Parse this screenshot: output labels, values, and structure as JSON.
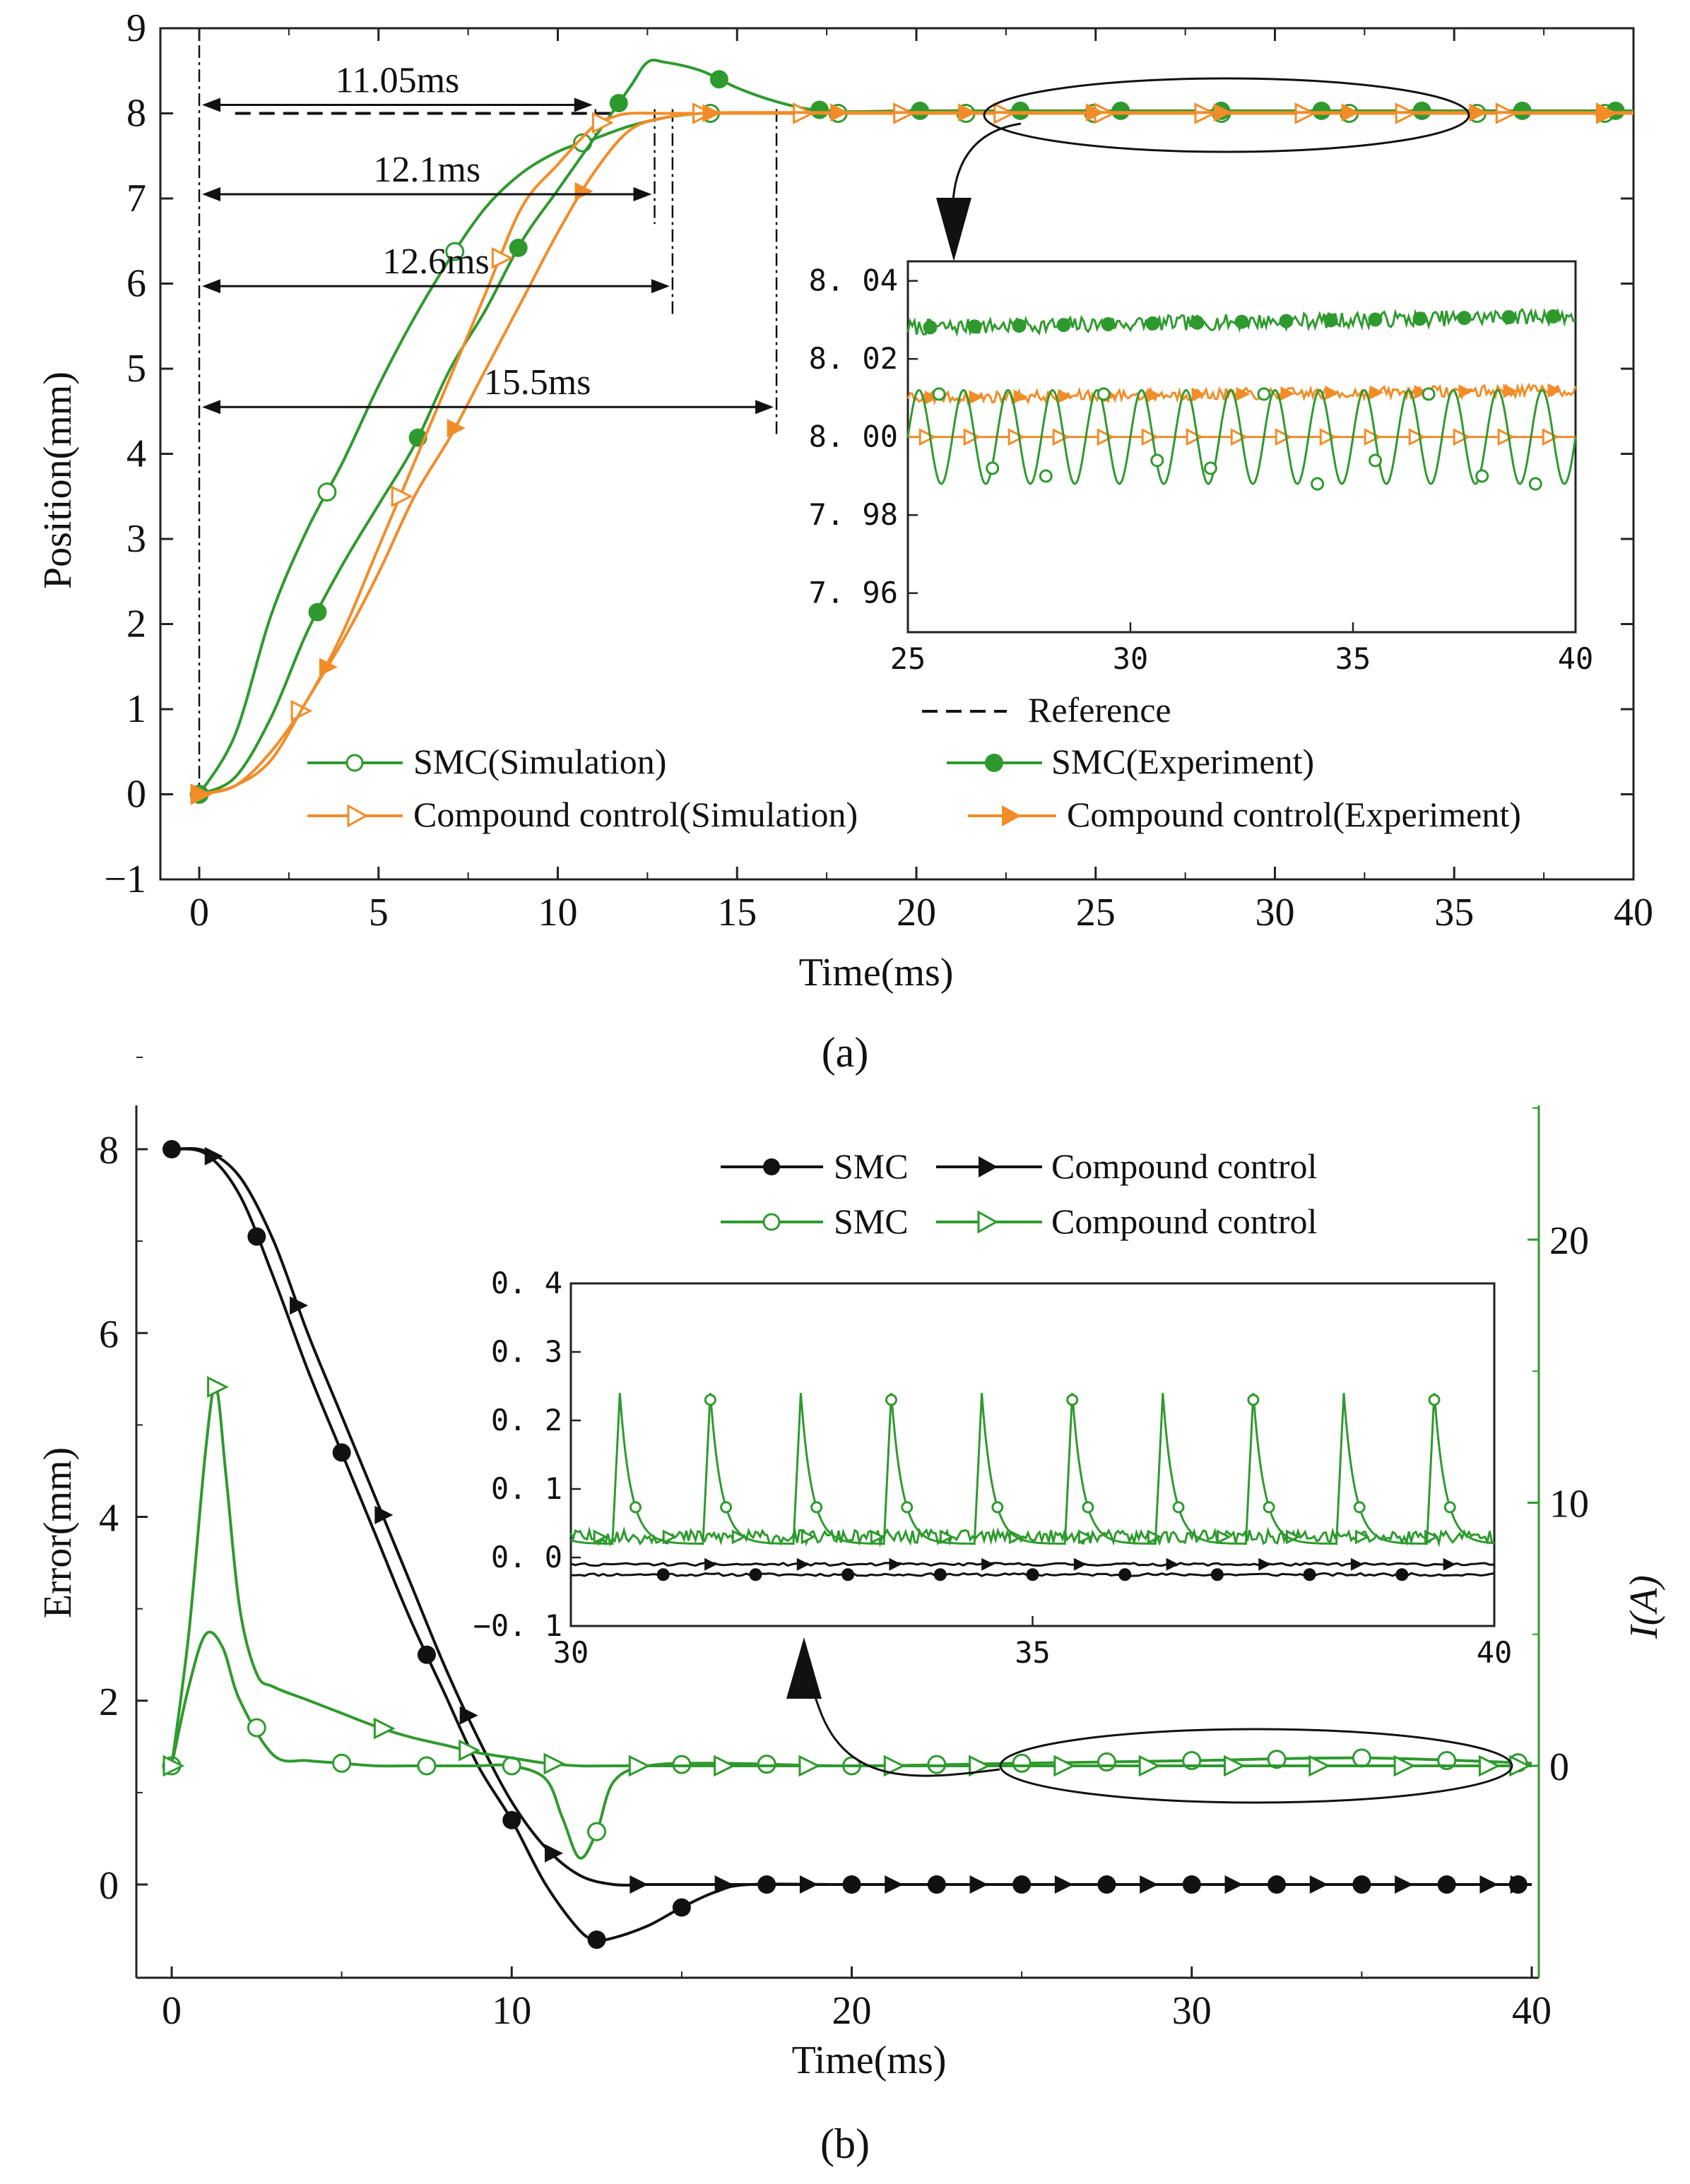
{
  "colors": {
    "smc_green": "#2e9a2e",
    "compound_orange": "#f28c28",
    "black": "#111111",
    "axis": "#222222"
  },
  "panels": [
    {
      "caption": "(a)"
    },
    {
      "caption": "(b)"
    }
  ],
  "chart_data": [
    {
      "type": "line",
      "panel": "a",
      "xlabel": "Time(ms)",
      "ylabel": "Position(mm)",
      "xlim": [
        0,
        40
      ],
      "ylim": [
        -1,
        9
      ],
      "xticks": [
        "0",
        "5",
        "10",
        "15",
        "20",
        "25",
        "30",
        "35",
        "40"
      ],
      "yticks": [
        "−1",
        "0",
        "1",
        "2",
        "3",
        "4",
        "5",
        "6",
        "7",
        "8",
        "9"
      ],
      "reference": {
        "name": "Reference",
        "value": 8
      },
      "annotations": [
        "11.05ms",
        "12.1ms",
        "12.6ms",
        "15.5ms"
      ],
      "annotation_times": [
        11.05,
        12.1,
        12.6,
        15.5
      ],
      "annotation_levels": [
        8.1,
        7.05,
        5.97,
        4.55
      ],
      "series": [
        {
          "name": "SMC(Simulation)",
          "color": "#2e9a2e",
          "marker": "open-circle",
          "x": [
            0,
            1,
            2,
            3,
            4,
            5,
            6,
            7,
            8,
            9,
            10,
            11,
            12,
            13,
            14,
            15,
            17,
            20,
            25,
            30,
            35,
            40
          ],
          "y": [
            0,
            0.7,
            2.1,
            3.1,
            3.9,
            4.8,
            5.6,
            6.3,
            6.9,
            7.3,
            7.55,
            7.7,
            7.85,
            7.95,
            8.0,
            8.0,
            8.0,
            8.0,
            8.0,
            8.0,
            8.0,
            8.0
          ]
        },
        {
          "name": "SMC(Experiment)",
          "color": "#2e9a2e",
          "marker": "filled-circle",
          "x": [
            0,
            1,
            2,
            3,
            4,
            5,
            6,
            7,
            8,
            9,
            10,
            11,
            12,
            12.5,
            13,
            14,
            15,
            16,
            17,
            18,
            20,
            25,
            30,
            35,
            40
          ],
          "y": [
            0,
            0.2,
            0.9,
            1.9,
            2.7,
            3.4,
            4.1,
            5.0,
            5.7,
            6.5,
            7.1,
            7.7,
            8.3,
            8.6,
            8.6,
            8.5,
            8.3,
            8.15,
            8.05,
            8.02,
            8.03,
            8.03,
            8.03,
            8.03,
            8.03
          ]
        },
        {
          "name": "Compound control(Simulation)",
          "color": "#f28c28",
          "marker": "open-triangle",
          "x": [
            0,
            1,
            2,
            3,
            4,
            5,
            6,
            7,
            8,
            9,
            10,
            11,
            11.5,
            12,
            13,
            15,
            20,
            25,
            30,
            35,
            40
          ],
          "y": [
            0,
            0.1,
            0.5,
            1.1,
            1.9,
            2.9,
            3.9,
            4.9,
            5.9,
            6.9,
            7.4,
            7.85,
            7.95,
            8.0,
            8.0,
            8.0,
            8.0,
            8.0,
            8.0,
            8.0,
            8.0
          ]
        },
        {
          "name": "Compound control(Experiment)",
          "color": "#f28c28",
          "marker": "filled-triangle",
          "x": [
            0,
            1,
            2,
            3,
            4,
            5,
            6,
            7,
            8,
            9,
            10,
            11,
            12,
            13,
            14,
            15,
            20,
            25,
            30,
            35,
            40
          ],
          "y": [
            0,
            0.1,
            0.4,
            1.1,
            1.8,
            2.6,
            3.5,
            4.2,
            5.0,
            5.8,
            6.6,
            7.3,
            7.8,
            7.95,
            8.0,
            8.01,
            8.01,
            8.01,
            8.01,
            8.01,
            8.01
          ]
        }
      ],
      "inset": {
        "xlim": [
          25,
          40
        ],
        "ylim": [
          7.95,
          8.045
        ],
        "xticks": [
          "25",
          "30",
          "35",
          "40"
        ],
        "yticks": [
          "8. 04",
          "8. 02",
          "8. 00",
          "7. 98",
          "7. 96"
        ],
        "series": [
          {
            "name": "SMC(Experiment)",
            "level": 8.028,
            "trend": 0.003,
            "noise": 0.002
          },
          {
            "name": "Compound control(Experiment)",
            "level": 8.01,
            "trend": 0.002,
            "noise": 0.0015
          },
          {
            "name": "SMC(Simulation)",
            "level": 8.0,
            "amplitude": 0.012,
            "period_ms": 1.0
          },
          {
            "name": "Compound control(Simulation)",
            "level": 8.0
          }
        ]
      }
    },
    {
      "type": "line",
      "panel": "b",
      "xlabel": "Time(ms)",
      "ylabel": "Error(mm)",
      "y2label": "I(A)",
      "xlim": [
        0,
        40
      ],
      "ylim": [
        -1,
        8.5
      ],
      "y2lim": [
        -16,
        30
      ],
      "xticks": [
        "0",
        "10",
        "20",
        "30",
        "40"
      ],
      "yticks": [
        "0",
        "2",
        "4",
        "6",
        "8"
      ],
      "y2ticks": [
        "0",
        "10",
        "20"
      ],
      "series": [
        {
          "name": "SMC",
          "axis": "left",
          "color": "#111111",
          "marker": "filled-circle",
          "x": [
            0,
            1,
            2,
            3,
            4,
            5,
            6,
            7,
            8,
            9,
            10,
            11,
            12,
            12.5,
            13,
            14,
            15,
            16,
            17,
            20,
            25,
            30,
            35,
            40
          ],
          "y": [
            8,
            7.95,
            7.5,
            6.6,
            5.6,
            4.7,
            3.8,
            2.9,
            2.1,
            1.3,
            0.7,
            0.0,
            -0.5,
            -0.6,
            -0.58,
            -0.45,
            -0.25,
            -0.08,
            0,
            0,
            0,
            0,
            0,
            0
          ]
        },
        {
          "name": "Compound control",
          "axis": "left",
          "color": "#111111",
          "marker": "filled-triangle",
          "x": [
            0,
            1,
            2,
            3,
            4,
            5,
            6,
            7,
            8,
            9,
            10,
            11,
            12,
            13,
            14,
            15,
            20,
            25,
            30,
            35,
            40
          ],
          "y": [
            8,
            7.98,
            7.7,
            7.0,
            6.0,
            5.1,
            4.2,
            3.3,
            2.4,
            1.6,
            0.9,
            0.4,
            0.1,
            0.0,
            0,
            0,
            0,
            0,
            0,
            0,
            0
          ]
        },
        {
          "name": "SMC",
          "axis": "right",
          "color": "#2e9a2e",
          "marker": "open-circle",
          "x": [
            0,
            0.5,
            1,
            1.5,
            2,
            3,
            4,
            5,
            6,
            7,
            8,
            9,
            10,
            11,
            11.5,
            12,
            12.5,
            13,
            14,
            16,
            20,
            25,
            30,
            35,
            40
          ],
          "y": [
            0,
            3,
            5,
            4.5,
            2.5,
            0.4,
            0.2,
            0.1,
            0,
            0,
            0,
            0,
            0,
            -0.5,
            -2,
            -3.5,
            -2.5,
            -0.6,
            0,
            0.1,
            0,
            0.1,
            0.2,
            0.3,
            0.1
          ]
        },
        {
          "name": "Compound control",
          "axis": "right",
          "color": "#2e9a2e",
          "marker": "open-triangle",
          "x": [
            0,
            0.5,
            1,
            1.3,
            1.6,
            2,
            2.5,
            3,
            4,
            5,
            6,
            7,
            8,
            9,
            10,
            11,
            12,
            13,
            15,
            20,
            25,
            30,
            35,
            40
          ],
          "y": [
            0,
            5,
            12,
            14.4,
            11,
            6,
            3.5,
            3.0,
            2.5,
            2.0,
            1.5,
            1.1,
            0.8,
            0.5,
            0.3,
            0.1,
            0,
            0,
            0,
            0,
            0,
            0,
            0,
            0
          ]
        }
      ],
      "legend": [
        [
          "SMC",
          "Compound control"
        ],
        [
          "SMC",
          "Compound control"
        ]
      ],
      "inset": {
        "xlim": [
          30,
          40
        ],
        "ylim": [
          -0.1,
          0.4
        ],
        "xticks": [
          "30",
          "35",
          "40"
        ],
        "yticks": [
          "0. 4",
          "0. 3",
          "0. 2",
          "0. 1",
          "0. 0",
          "−0. 1"
        ],
        "series": [
          {
            "name": "SMC",
            "color": "green",
            "base": 0.02,
            "peak": 0.24,
            "period_ms": 0.98
          },
          {
            "name": "Compound control",
            "color": "green",
            "base": 0.03,
            "noise": 0.01
          },
          {
            "name": "SMC",
            "color": "black",
            "base": -0.025
          },
          {
            "name": "Compound control",
            "color": "black",
            "base": -0.01
          }
        ]
      }
    }
  ]
}
